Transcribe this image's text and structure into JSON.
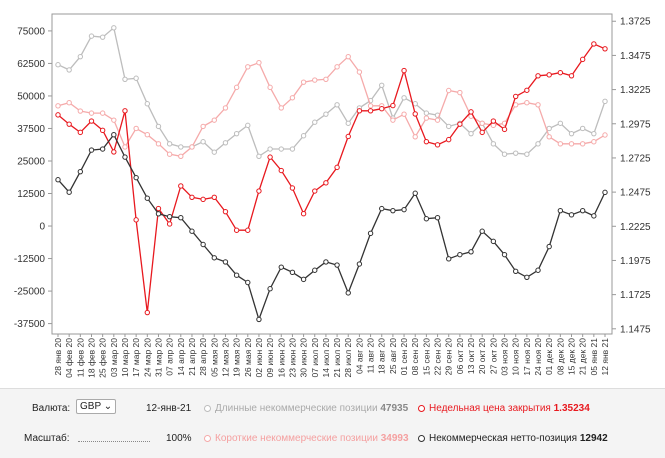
{
  "chart_data": {
    "type": "line",
    "categories": [
      "28 янв 20",
      "04 фев 20",
      "11 фев 20",
      "18 фев 20",
      "25 фев 20",
      "03 мар 20",
      "10 мар 20",
      "17 мар 20",
      "24 мар 20",
      "31 мар 20",
      "07 апр 20",
      "14 апр 20",
      "21 апр 20",
      "28 апр 20",
      "05 мая 20",
      "12 мая 20",
      "19 мая 20",
      "26 мая 20",
      "02 июн 20",
      "09 июн 20",
      "16 июн 20",
      "23 июн 20",
      "30 июн 20",
      "07 июл 20",
      "14 июл 20",
      "21 июл 20",
      "28 июл 20",
      "04 авг 20",
      "11 авг 20",
      "18 авг 20",
      "25 авг 20",
      "01 сен 20",
      "08 сен 20",
      "15 сен 20",
      "22 сен 20",
      "29 сен 20",
      "06 окт 20",
      "13 окт 20",
      "20 окт 20",
      "27 окт 20",
      "03 ноя 20",
      "10 ноя 20",
      "17 ноя 20",
      "24 ноя 20",
      "01 дек 20",
      "08 дек 20",
      "15 дек 20",
      "21 дек 20",
      "05 янв 21",
      "12 янв 21"
    ],
    "series": [
      {
        "name": "Длинные некоммерческие позиции",
        "color": "#bdbdbd",
        "values": [
          62000,
          60000,
          65100,
          73000,
          72600,
          76200,
          56400,
          56800,
          47000,
          38300,
          31600,
          30400,
          30400,
          32400,
          28400,
          32000,
          35500,
          38700,
          26800,
          29600,
          29600,
          29600,
          34700,
          39900,
          43000,
          46600,
          39500,
          45400,
          48200,
          54100,
          41500,
          49300,
          47000,
          43400,
          42600,
          38300,
          39500,
          35500,
          39500,
          31600,
          27600,
          28000,
          27600,
          31600,
          37500,
          39500,
          35500,
          37500,
          35500,
          47935
        ]
      },
      {
        "name": "Короткие некоммерческие позиции",
        "color": "#f5aaaa",
        "values": [
          46200,
          47400,
          44200,
          43400,
          43400,
          40700,
          30400,
          37500,
          35100,
          31600,
          27600,
          26800,
          30400,
          38300,
          40700,
          45400,
          53300,
          61200,
          62800,
          53300,
          45400,
          49300,
          55300,
          56100,
          56400,
          61200,
          65100,
          59200,
          46200,
          46200,
          40700,
          43000,
          34300,
          41500,
          40700,
          52100,
          51300,
          42200,
          39500,
          38700,
          39500,
          46600,
          47400,
          46600,
          34300,
          31600,
          31600,
          31600,
          32400,
          34993
        ]
      },
      {
        "name": "Недельная цена закрытия",
        "color": "#e8191f",
        "axis": "y2",
        "values": [
          1.304,
          1.2972,
          1.2912,
          1.2995,
          1.2927,
          1.2769,
          1.307,
          1.2272,
          1.1594,
          1.2355,
          1.2242,
          1.252,
          1.2437,
          1.2422,
          1.2437,
          1.2332,
          1.2196,
          1.2196,
          1.2483,
          1.2731,
          1.2633,
          1.2505,
          1.2317,
          1.2483,
          1.2543,
          1.2656,
          1.2882,
          1.307,
          1.307,
          1.3085,
          1.3108,
          1.3364,
          1.3047,
          1.2844,
          1.2821,
          1.2859,
          1.2972,
          1.3062,
          1.2912,
          1.2995,
          1.2934,
          1.3175,
          1.322,
          1.3326,
          1.3333,
          1.3349,
          1.3326,
          1.3446,
          1.3559,
          1.35234
        ]
      },
      {
        "name": "Некоммерческая нетто-позиция",
        "color": "#333333",
        "values": [
          17800,
          13000,
          20900,
          29200,
          29600,
          35100,
          26500,
          18600,
          10700,
          4700,
          3600,
          3200,
          -2000,
          -7100,
          -12200,
          -13800,
          -18900,
          -21700,
          -35900,
          -24100,
          -15800,
          -17800,
          -20500,
          -17000,
          -13800,
          -15000,
          -25700,
          -14600,
          -2800,
          6700,
          5900,
          6300,
          12600,
          2800,
          3200,
          -12600,
          -11000,
          -9900,
          -2000,
          -5900,
          -11000,
          -17400,
          -19700,
          -17000,
          -7900,
          5900,
          4300,
          5900,
          3900,
          12942
        ]
      }
    ],
    "ylim": [
      -41500,
      81500
    ],
    "yticks": [
      75000,
      62500,
      50000,
      37500,
      25000,
      12500,
      0,
      -12500,
      -25000,
      -37500
    ],
    "y2lim": [
      1.1437,
      1.3778
    ],
    "y2ticks": [
      1.3725,
      1.3475,
      1.3225,
      1.2975,
      1.2725,
      1.2475,
      1.2225,
      1.1975,
      1.1725,
      1.1475
    ],
    "grid": false
  },
  "controls": {
    "currency_label": "Валюта:",
    "currency": "GBP",
    "date": "12-янв-21",
    "scale_label": "Масштаб:",
    "scale": "100%"
  }
}
